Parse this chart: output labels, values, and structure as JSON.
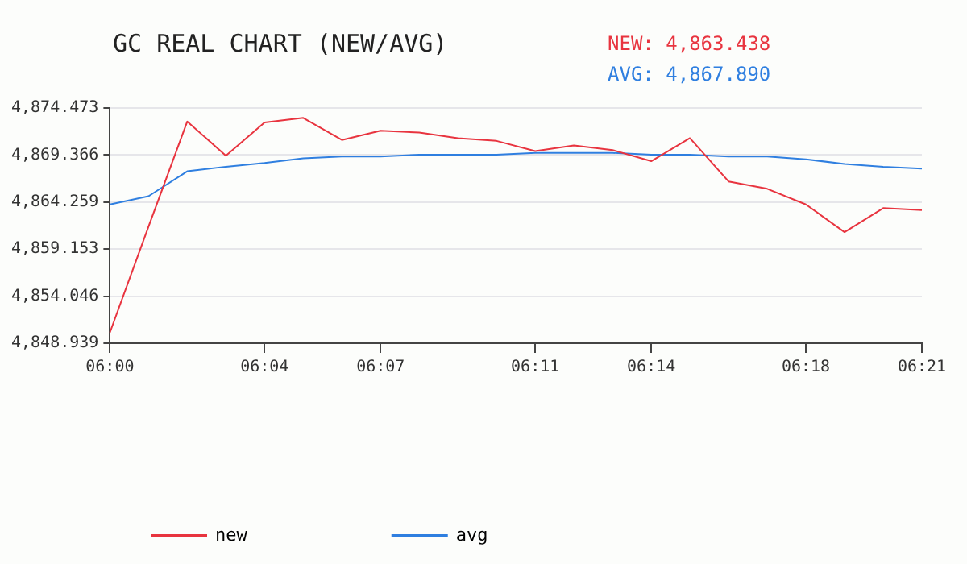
{
  "chart_data": {
    "type": "line",
    "title": "GC REAL CHART (NEW/AVG)",
    "annotations": [
      "NEW: 4,863.438",
      "AVG: 4,867.890"
    ],
    "categories": [
      "06:00",
      null,
      null,
      null,
      "06:04",
      null,
      null,
      "06:07",
      null,
      null,
      null,
      "06:11",
      null,
      null,
      "06:14",
      null,
      null,
      null,
      "06:18",
      null,
      null,
      "06:21"
    ],
    "series": [
      {
        "name": "new",
        "color": "#e8343f",
        "values": [
          4850.1,
          4861.6,
          4873.0,
          4869.3,
          4872.9,
          4873.4,
          4871.0,
          4872.0,
          4871.8,
          4871.2,
          4870.9,
          4869.8,
          4870.4,
          4869.9,
          4868.7,
          4871.2,
          4866.5,
          4865.7,
          4864.0,
          4861.0,
          4863.6,
          4863.4
        ]
      },
      {
        "name": "avg",
        "color": "#2f7fe0",
        "values": [
          4864.0,
          4864.9,
          4867.6,
          4868.1,
          4868.5,
          4869.0,
          4869.2,
          4869.2,
          4869.4,
          4869.4,
          4869.4,
          4869.6,
          4869.6,
          4869.6,
          4869.4,
          4869.4,
          4869.2,
          4869.2,
          4868.9,
          4868.4,
          4868.1,
          4867.9
        ]
      }
    ],
    "ylim": [
      4848.939,
      4874.473
    ],
    "yticks": [
      {
        "value": 4848.939,
        "label": "4,848.939"
      },
      {
        "value": 4854.046,
        "label": "4,854.046"
      },
      {
        "value": 4859.153,
        "label": "4,859.153"
      },
      {
        "value": 4864.259,
        "label": "4,864.259"
      },
      {
        "value": 4869.366,
        "label": "4,869.366"
      },
      {
        "value": 4874.473,
        "label": "4,874.473"
      }
    ],
    "grid": "y",
    "legend": "bottom",
    "marker": "none",
    "line_style": "solid"
  }
}
